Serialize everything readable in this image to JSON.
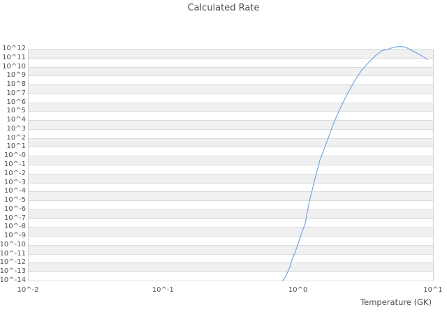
{
  "chart": {
    "title": "Calculated Rate",
    "xlabel": "Temperature (GK)"
  },
  "chart_data": {
    "type": "line",
    "title": "Calculated Rate",
    "xlabel": "Temperature (GK)",
    "ylabel": "",
    "x_scale": "log",
    "y_scale": "log",
    "xlim": [
      0.01,
      10
    ],
    "ylim_log10": [
      -14,
      12
    ],
    "grid": "horizontal-bands",
    "legend": "none",
    "line_color": "#6f9fdc",
    "band_color": "#f0f0f0",
    "grid_color": "#dcdcdc",
    "text_color": "#4f4f4f",
    "x_ticks": [
      {
        "label": "10^-2",
        "log10": -2
      },
      {
        "label": "10^-1",
        "log10": -1
      },
      {
        "label": "10^0",
        "log10": 0
      },
      {
        "label": "10^1",
        "log10": 1
      }
    ],
    "y_ticks": [
      {
        "label": "10^12",
        "exp": 12
      },
      {
        "label": "10^11",
        "exp": 11
      },
      {
        "label": "10^10",
        "exp": 10
      },
      {
        "label": "10^9",
        "exp": 9
      },
      {
        "label": "10^8",
        "exp": 8
      },
      {
        "label": "10^7",
        "exp": 7
      },
      {
        "label": "10^6",
        "exp": 6
      },
      {
        "label": "10^5",
        "exp": 5
      },
      {
        "label": "10^4",
        "exp": 4
      },
      {
        "label": "10^3",
        "exp": 3
      },
      {
        "label": "10^2",
        "exp": 2
      },
      {
        "label": "10^1",
        "exp": 1
      },
      {
        "label": "10^-0",
        "exp": 0
      },
      {
        "label": "10^-1",
        "exp": -1
      },
      {
        "label": "10^-2",
        "exp": -2
      },
      {
        "label": "10^-3",
        "exp": -3
      },
      {
        "label": "10^-4",
        "exp": -4
      },
      {
        "label": "10^-5",
        "exp": -5
      },
      {
        "label": "10^-6",
        "exp": -6
      },
      {
        "label": "10^-7",
        "exp": -7
      },
      {
        "label": "10^-8",
        "exp": -8
      },
      {
        "label": "10^-9",
        "exp": -9
      },
      {
        "label": "10^-10",
        "exp": -10
      },
      {
        "label": "10^-11",
        "exp": -11
      },
      {
        "label": "10^-12",
        "exp": -12
      },
      {
        "label": "10^-13",
        "exp": -13
      },
      {
        "label": "10^-14",
        "exp": -14
      }
    ],
    "series": [
      {
        "name": "Calculated Rate",
        "x_GK": [
          0.77,
          0.8,
          0.87,
          0.9,
          0.96,
          1.04,
          1.13,
          1.21,
          1.32,
          1.45,
          1.62,
          1.82,
          2.05,
          2.31,
          2.6,
          2.93,
          3.3,
          3.72,
          4.19,
          4.72,
          5.19,
          5.71,
          6.21,
          7.0,
          7.89,
          9.1
        ],
        "log10_rate": [
          -14.0,
          -13.7,
          -12.5,
          -11.7,
          -10.7,
          -9.1,
          -7.6,
          -5.2,
          -2.9,
          -0.5,
          1.4,
          3.5,
          5.3,
          6.9,
          8.3,
          9.5,
          10.4,
          11.2,
          11.8,
          12.0,
          12.2,
          12.27,
          12.2,
          11.8,
          11.4,
          10.8
        ]
      }
    ]
  }
}
